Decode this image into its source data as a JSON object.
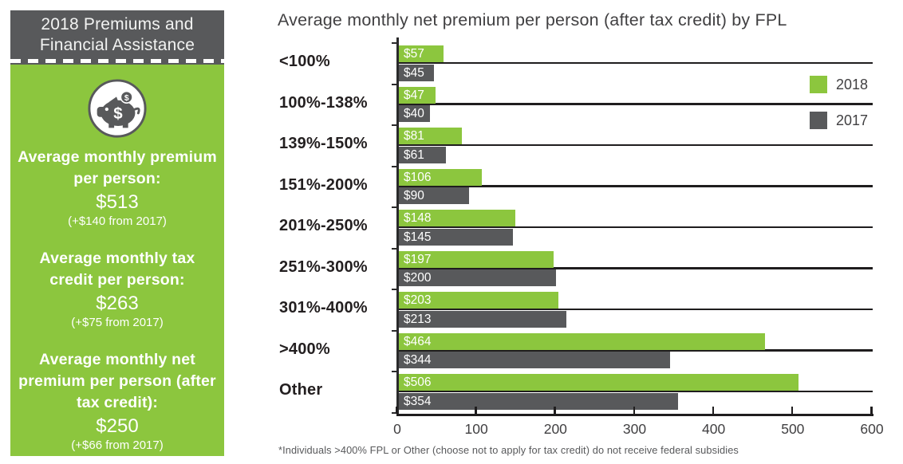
{
  "sidebar": {
    "title": "2018 Premiums and Financial Assistance",
    "icon": "piggy-bank-icon",
    "stats": [
      {
        "label": "Average monthly premium per person:",
        "value": "$513",
        "change": "(+$140 from 2017)"
      },
      {
        "label": "Average monthly tax credit per person:",
        "value": "$263",
        "change": "(+$75 from 2017)"
      },
      {
        "label": "Average monthly net premium per person (after tax credit):",
        "value": "$250",
        "change": "(+$66 from 2017)"
      }
    ],
    "colors": {
      "header_bg": "#58595b",
      "body_bg": "#8cc63e",
      "text": "#ffffff"
    }
  },
  "chart": {
    "title": "Average monthly net premium per person (after tax credit) by FPL",
    "footnote": "*Individuals >400% FPL or Other (choose not to apply for tax credit) do not receive federal subsidies"
  },
  "chart_data": {
    "type": "bar",
    "orientation": "horizontal",
    "title": "Average monthly net premium per person (after tax credit) by FPL",
    "categories": [
      "<100%",
      "100%-138%",
      "139%-150%",
      "151%-200%",
      "201%-250%",
      "251%-300%",
      "301%-400%",
      ">400%",
      "Other"
    ],
    "series": [
      {
        "name": "2018",
        "color": "#8cc63e",
        "values": [
          57,
          47,
          81,
          106,
          148,
          197,
          203,
          464,
          506
        ],
        "labels": [
          "$57",
          "$47",
          "$81",
          "$106",
          "$148",
          "$197",
          "$203",
          "$464",
          "$506"
        ]
      },
      {
        "name": "2017",
        "color": "#58595b",
        "values": [
          45,
          40,
          61,
          90,
          145,
          200,
          213,
          344,
          354
        ],
        "labels": [
          "$45",
          "$40",
          "$61",
          "$90",
          "$145",
          "$200",
          "$213",
          "$344",
          "$354"
        ]
      }
    ],
    "xlim": [
      0,
      600
    ],
    "xticks": [
      0,
      100,
      200,
      300,
      400,
      500,
      600
    ],
    "grid": "category-lines",
    "legend_position": "top-right",
    "footnote": "*Individuals >400% FPL or Other (choose not to apply for tax credit) do not receive federal subsidies"
  }
}
